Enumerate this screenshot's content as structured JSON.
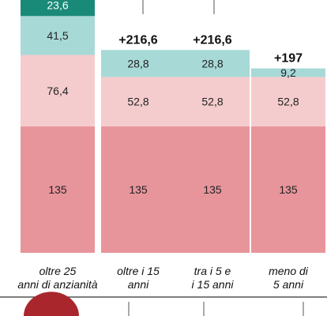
{
  "chart_data": {
    "type": "bar",
    "stacked": true,
    "categories": [
      [
        "oltre 25",
        "anni di anzianità"
      ],
      [
        "oltre i 15",
        "anni"
      ],
      [
        "tra i 5 e",
        "i 15 anni"
      ],
      [
        "meno di",
        "5 anni"
      ]
    ],
    "series": [
      {
        "values": [
          135,
          135,
          135,
          135
        ],
        "labels": [
          "135",
          "135",
          "135",
          "135"
        ],
        "color": "#e8949b"
      },
      {
        "values": [
          76.4,
          52.8,
          52.8,
          52.8
        ],
        "labels": [
          "76,4",
          "52,8",
          "52,8",
          "52,8"
        ],
        "color": "#f5cccd"
      },
      {
        "values": [
          41.5,
          28.8,
          28.8,
          9.2
        ],
        "labels": [
          "41,5",
          "28,8",
          "28,8",
          "9,2"
        ],
        "color": "#a7d9d7"
      },
      {
        "values": [
          23.6,
          0,
          0,
          0
        ],
        "labels": [
          "23,6",
          "",
          "",
          ""
        ],
        "color": "#1a8a78"
      }
    ],
    "totals": [
      "",
      "+216,6",
      "+216,6",
      "+197"
    ],
    "grid": false,
    "legend": "none"
  }
}
